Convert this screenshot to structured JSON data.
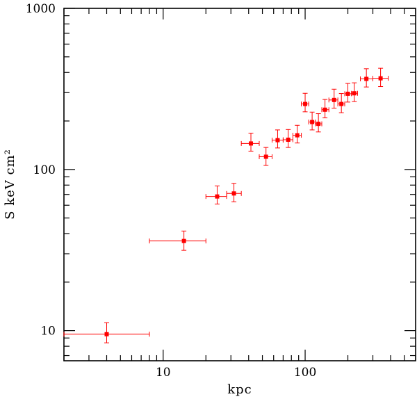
{
  "chart_data": {
    "type": "scatter",
    "xlabel": "kpc",
    "ylabel": "S keV cm²",
    "xscale": "log",
    "yscale": "log",
    "xlim": [
      2,
      600
    ],
    "ylim": [
      6.5,
      1000
    ],
    "x_ticks": [
      {
        "value": 10,
        "label": "10"
      },
      {
        "value": 100,
        "label": "100"
      }
    ],
    "y_ticks": [
      {
        "value": 10,
        "label": "10"
      },
      {
        "value": 100,
        "label": "100"
      },
      {
        "value": 1000,
        "label": "1000"
      }
    ],
    "grid": false,
    "legend": "none",
    "color": "#ff0000",
    "points": [
      {
        "x": 4,
        "y": 9.5,
        "xlo": 2,
        "xhi": 8,
        "ylo": 8.4,
        "yhi": 11.2
      },
      {
        "x": 14,
        "y": 36,
        "xlo": 8,
        "xhi": 20,
        "ylo": 31.5,
        "yhi": 41.5
      },
      {
        "x": 24,
        "y": 68,
        "xlo": 20,
        "xhi": 28,
        "ylo": 61,
        "yhi": 79
      },
      {
        "x": 31.5,
        "y": 71,
        "xlo": 28,
        "xhi": 35.5,
        "ylo": 63,
        "yhi": 82
      },
      {
        "x": 41.5,
        "y": 145,
        "xlo": 35.5,
        "xhi": 47.5,
        "ylo": 130,
        "yhi": 168
      },
      {
        "x": 53,
        "y": 120,
        "xlo": 47.5,
        "xhi": 58.5,
        "ylo": 106,
        "yhi": 137
      },
      {
        "x": 64,
        "y": 152,
        "xlo": 58.5,
        "xhi": 70,
        "ylo": 136,
        "yhi": 176
      },
      {
        "x": 76,
        "y": 153,
        "xlo": 70,
        "xhi": 82,
        "ylo": 137,
        "yhi": 177
      },
      {
        "x": 88,
        "y": 163,
        "xlo": 82,
        "xhi": 94,
        "ylo": 146,
        "yhi": 188
      },
      {
        "x": 100,
        "y": 255,
        "xlo": 94,
        "xhi": 106,
        "ylo": 228,
        "yhi": 297
      },
      {
        "x": 112,
        "y": 197,
        "xlo": 106,
        "xhi": 118,
        "ylo": 176,
        "yhi": 227
      },
      {
        "x": 124,
        "y": 192,
        "xlo": 118,
        "xhi": 131,
        "ylo": 171,
        "yhi": 222
      },
      {
        "x": 138,
        "y": 235,
        "xlo": 131,
        "xhi": 147,
        "ylo": 209,
        "yhi": 272
      },
      {
        "x": 160,
        "y": 270,
        "xlo": 147,
        "xhi": 170,
        "ylo": 240,
        "yhi": 315
      },
      {
        "x": 180,
        "y": 255,
        "xlo": 170,
        "xhi": 190,
        "ylo": 225,
        "yhi": 296
      },
      {
        "x": 200,
        "y": 295,
        "xlo": 190,
        "xhi": 212,
        "ylo": 262,
        "yhi": 342
      },
      {
        "x": 222,
        "y": 297,
        "xlo": 212,
        "xhi": 234,
        "ylo": 264,
        "yhi": 345
      },
      {
        "x": 270,
        "y": 365,
        "xlo": 245,
        "xhi": 300,
        "ylo": 325,
        "yhi": 422
      },
      {
        "x": 340,
        "y": 368,
        "xlo": 300,
        "xhi": 385,
        "ylo": 327,
        "yhi": 425
      }
    ]
  }
}
